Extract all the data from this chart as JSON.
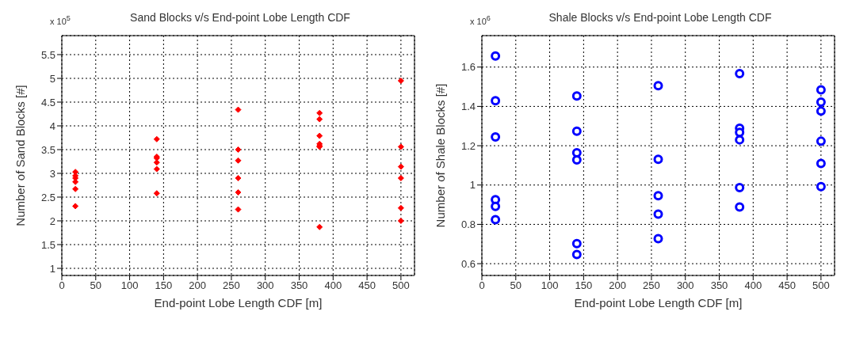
{
  "chart_data": [
    {
      "type": "scatter",
      "title": "Sand Blocks v/s End-point Lobe Length CDF",
      "xlabel": "End-point Lobe Length CDF [m]",
      "ylabel": "Number of Sand Blocks [#]",
      "annotations": [
        "x 10$^{5}$"
      ],
      "x": [
        20,
        20,
        20,
        20,
        20,
        20,
        140,
        140,
        140,
        140,
        140,
        140,
        260,
        260,
        260,
        260,
        260,
        260,
        380,
        380,
        380,
        380,
        380,
        380,
        380,
        500,
        500,
        500,
        500,
        500,
        500
      ],
      "values": [
        3.03,
        2.95,
        2.9,
        2.82,
        2.67,
        2.31,
        3.72,
        3.35,
        3.32,
        3.23,
        3.09,
        2.58,
        4.34,
        3.5,
        3.27,
        2.9,
        2.6,
        2.24,
        4.27,
        4.14,
        3.79,
        3.62,
        3.58,
        3.56,
        1.87,
        4.95,
        3.56,
        3.14,
        2.9,
        2.27,
        2.0
      ],
      "color": "#ff0000",
      "marker": "diamond",
      "xlim": [
        0,
        520
      ],
      "xticks": [
        0,
        50,
        100,
        150,
        200,
        250,
        300,
        350,
        400,
        450,
        500
      ],
      "ylim": [
        0.85,
        5.9
      ],
      "yticks": [
        1,
        1.5,
        2,
        2.5,
        3,
        3.5,
        4,
        4.5,
        5,
        5.5
      ],
      "grid": true
    },
    {
      "type": "scatter",
      "title": "Shale Blocks v/s End-point Lobe Length CDF",
      "xlabel": "End-point Lobe Length CDF [m]",
      "ylabel": "Number of Shale Blocks [#]",
      "annotations": [
        "x 10$^{6}$"
      ],
      "x": [
        20,
        20,
        20,
        20,
        20,
        20,
        140,
        140,
        140,
        140,
        140,
        140,
        260,
        260,
        260,
        260,
        260,
        380,
        380,
        380,
        380,
        380,
        380,
        500,
        500,
        500,
        500,
        500,
        500
      ],
      "values": [
        1.656,
        1.429,
        1.245,
        0.926,
        0.891,
        0.824,
        1.453,
        1.274,
        1.164,
        1.128,
        0.702,
        0.647,
        1.505,
        1.131,
        0.946,
        0.852,
        0.727,
        1.567,
        1.289,
        1.268,
        1.23,
        0.987,
        0.888,
        1.484,
        1.422,
        1.376,
        1.223,
        1.11,
        0.992
      ],
      "color": "#0000ff",
      "marker": "circle",
      "xlim": [
        0,
        520
      ],
      "xticks": [
        0,
        50,
        100,
        150,
        200,
        250,
        300,
        350,
        400,
        450,
        500
      ],
      "ylim": [
        0.54,
        1.76
      ],
      "yticks": [
        0.6,
        0.8,
        1,
        1.2,
        1.4,
        1.6
      ],
      "grid": true
    }
  ]
}
